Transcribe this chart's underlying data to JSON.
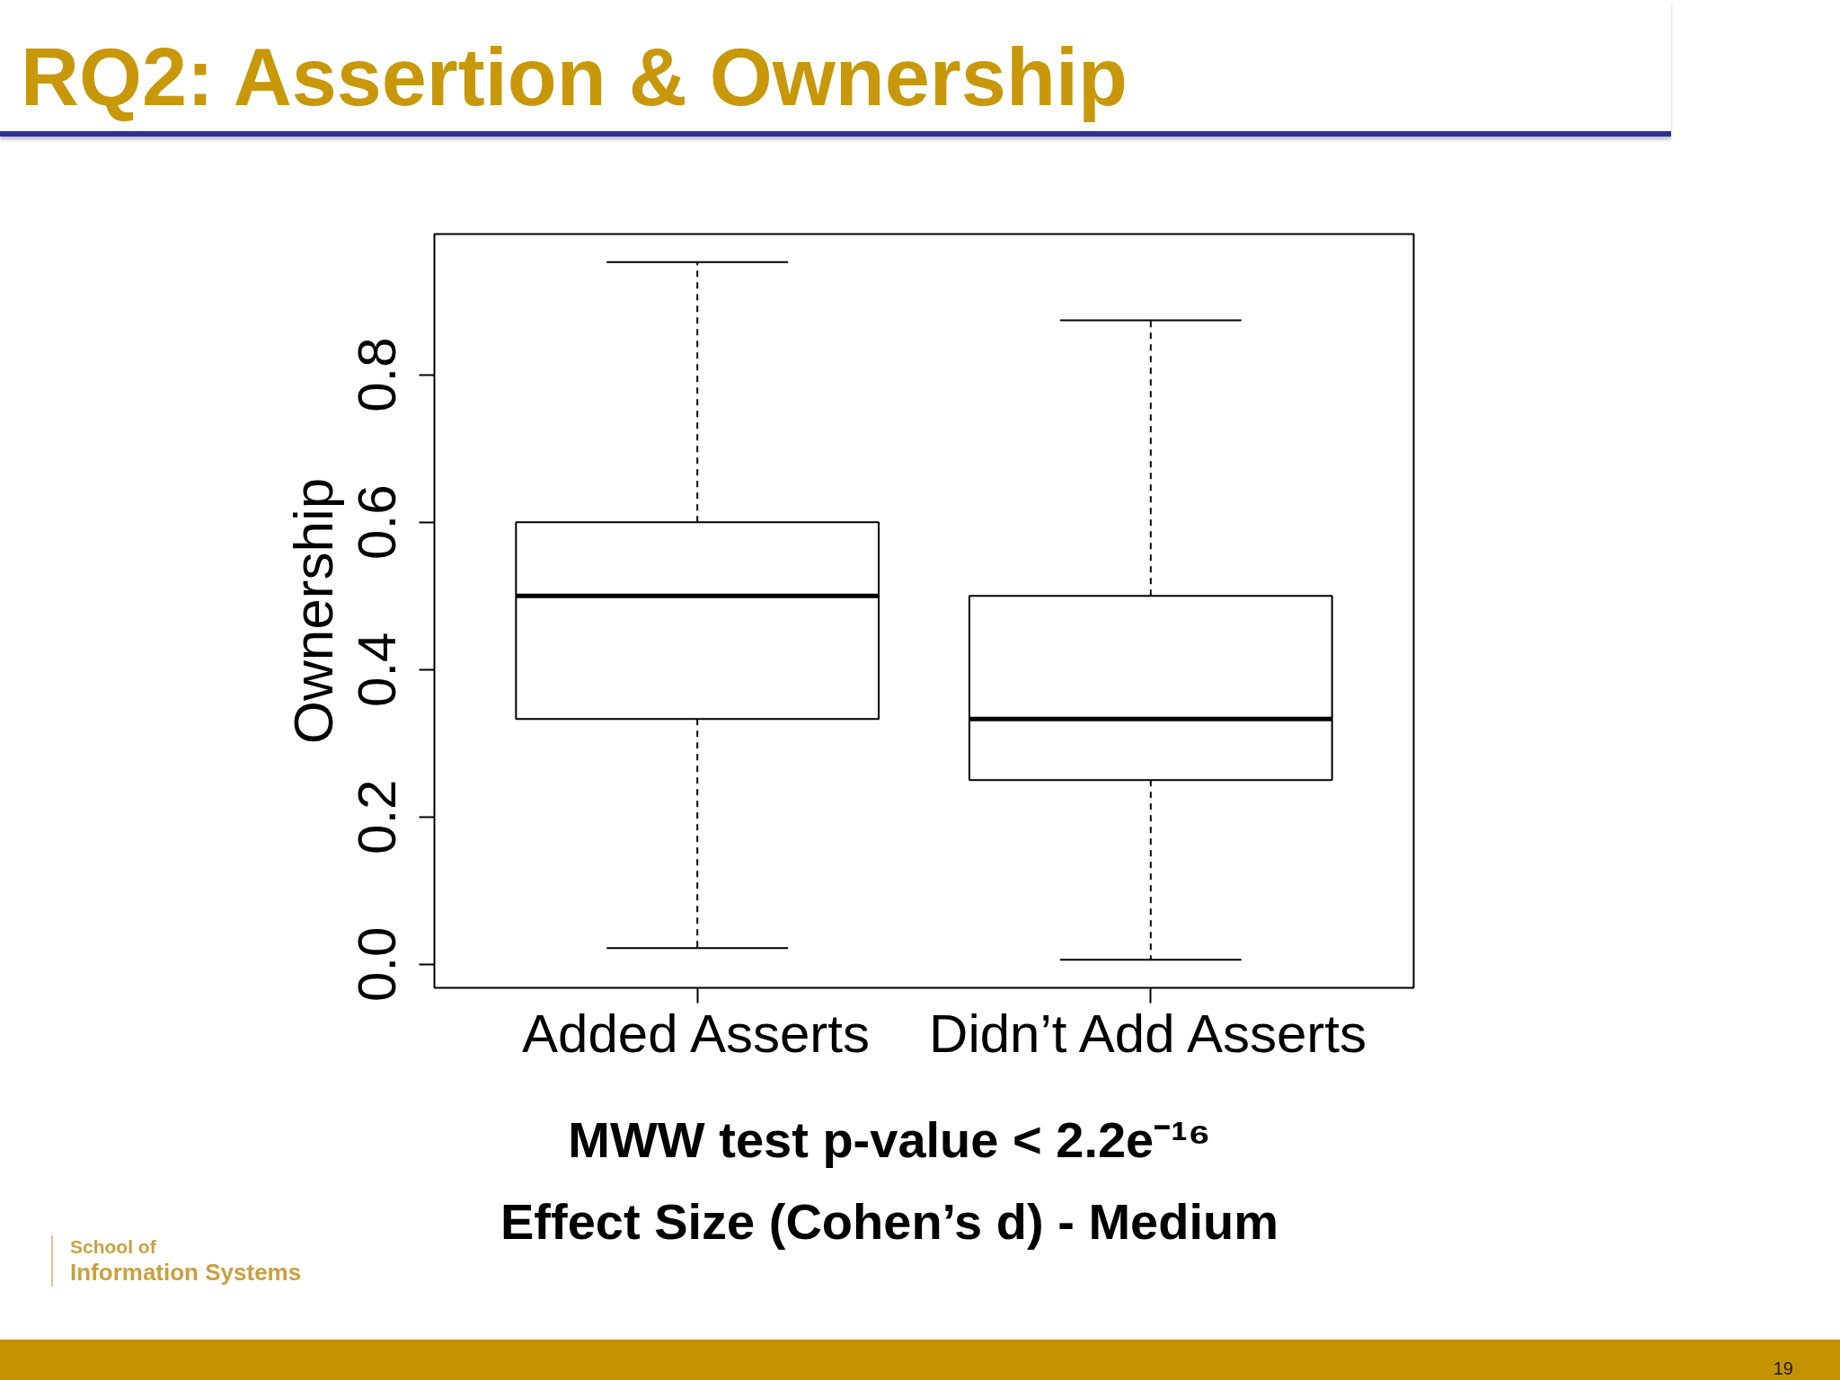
{
  "chart_data": {
    "type": "box",
    "title": "RQ2: Assertion & Ownership",
    "ylabel": "Ownership",
    "categories": [
      "Added Asserts",
      "Didn’t Add Asserts"
    ],
    "boxes": [
      {
        "low": 0.022,
        "q1": 0.333,
        "median": 0.5,
        "q3": 0.6,
        "high": 0.953
      },
      {
        "low": 0.006,
        "q1": 0.25,
        "median": 0.333,
        "q3": 0.5,
        "high": 0.874
      }
    ],
    "ylim": [
      -0.032,
      0.991
    ],
    "yticks": [
      {
        "value": 0,
        "label": "0.0"
      },
      0.2,
      0.4,
      0.6,
      0.8
    ],
    "annotations": [
      "MWW test p-value < 2.2e⁻¹⁶",
      "Effect Size (Cohen’s d) - Medium",
      "School of",
      "Information Systems",
      "19"
    ]
  }
}
